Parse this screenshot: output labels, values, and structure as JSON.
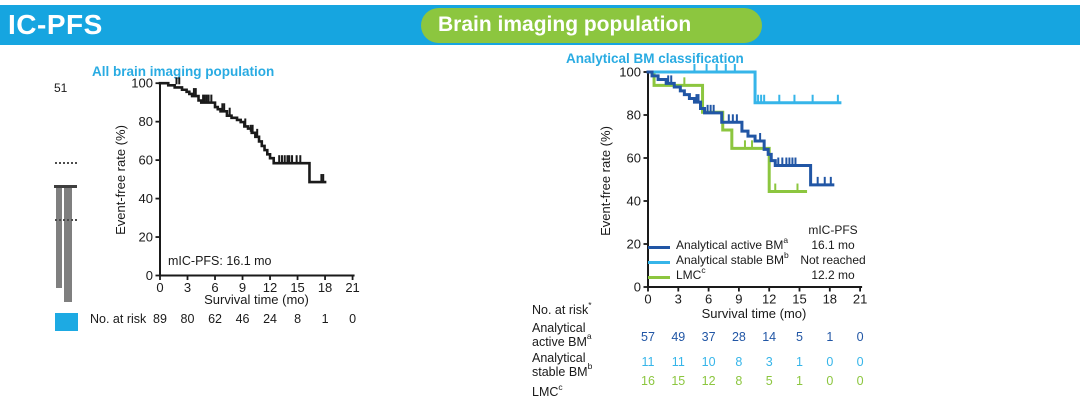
{
  "header": {
    "title": "IC-PFS",
    "banner_color": "#16a5e0",
    "pill": {
      "label": "Brain imaging population",
      "color": "#8cc63f"
    }
  },
  "left_fragment": {
    "count": "51",
    "swatch_color": "#1daae3"
  },
  "chart_data": [
    {
      "type": "line",
      "subtype": "kaplan-meier",
      "title": "All brain imaging population",
      "xlabel": "Survival time (mo)",
      "ylabel": "Event-free rate (%)",
      "xlim": [
        0,
        21
      ],
      "ylim": [
        0,
        100
      ],
      "xticks": [
        0,
        3,
        6,
        9,
        12,
        15,
        18,
        21
      ],
      "yticks": [
        0,
        20,
        40,
        60,
        80,
        100
      ],
      "grid": false,
      "annotation": "mIC-PFS: 16.1 mo",
      "at_risk_label": "No. at risk",
      "series": [
        {
          "name": "All brain imaging population",
          "color": "#1a1a1a",
          "median_months": 16.1,
          "steps": [
            [
              0,
              100
            ],
            [
              0.9,
              98.9
            ],
            [
              1.6,
              97.8
            ],
            [
              2.4,
              96.6
            ],
            [
              2.9,
              95.5
            ],
            [
              3.2,
              94.4
            ],
            [
              3.5,
              93.3
            ],
            [
              4.2,
              91.0
            ],
            [
              4.5,
              89.9
            ],
            [
              6.0,
              87.6
            ],
            [
              6.3,
              86.5
            ],
            [
              6.6,
              85.4
            ],
            [
              7.3,
              83.1
            ],
            [
              7.8,
              82.0
            ],
            [
              8.4,
              80.9
            ],
            [
              8.8,
              79.8
            ],
            [
              9.2,
              77.5
            ],
            [
              9.6,
              76.4
            ],
            [
              10.0,
              74.2
            ],
            [
              10.4,
              72.1
            ],
            [
              10.8,
              69.7
            ],
            [
              11.1,
              67.4
            ],
            [
              11.4,
              65.2
            ],
            [
              11.7,
              63.0
            ],
            [
              12.0,
              61.0
            ],
            [
              12.4,
              58.4
            ],
            [
              16.3,
              48.6
            ],
            [
              18.0,
              48.6
            ]
          ],
          "censors": [
            [
              1.8,
              98.9
            ],
            [
              2.1,
              98.9
            ],
            [
              3.7,
              93.3
            ],
            [
              3.9,
              93.3
            ],
            [
              4.7,
              89.9
            ],
            [
              4.9,
              89.9
            ],
            [
              5.1,
              89.9
            ],
            [
              5.3,
              89.9
            ],
            [
              5.6,
              89.9
            ],
            [
              6.8,
              85.4
            ],
            [
              7.0,
              85.4
            ],
            [
              7.6,
              83.1
            ],
            [
              9.3,
              77.5
            ],
            [
              9.9,
              74.2
            ],
            [
              10.1,
              74.2
            ],
            [
              10.6,
              72.1
            ],
            [
              13.0,
              58.4
            ],
            [
              13.3,
              58.4
            ],
            [
              13.6,
              58.4
            ],
            [
              13.9,
              58.4
            ],
            [
              14.1,
              58.4
            ],
            [
              14.4,
              58.4
            ],
            [
              14.9,
              58.4
            ],
            [
              15.3,
              58.4
            ],
            [
              17.6,
              48.6
            ],
            [
              17.8,
              48.6
            ]
          ],
          "at_risk": [
            89,
            80,
            62,
            46,
            24,
            8,
            1,
            0
          ]
        }
      ]
    },
    {
      "type": "line",
      "subtype": "kaplan-meier",
      "title": "Analytical BM classification",
      "xlabel": "Survival time (mo)",
      "ylabel": "Event-free rate (%)",
      "xlim": [
        0,
        21
      ],
      "ylim": [
        0,
        100
      ],
      "xticks": [
        0,
        3,
        6,
        9,
        12,
        15,
        18,
        21
      ],
      "yticks": [
        0,
        20,
        40,
        60,
        80,
        100
      ],
      "grid": false,
      "at_risk_labels": {
        "title": "No. at risk",
        "title_sup": "*",
        "rows": [
          {
            "label": "Analytical active BM",
            "sup": "a"
          },
          {
            "label": "Analytical stable BM",
            "sup": "b"
          },
          {
            "label": "LMC",
            "sup": "c"
          }
        ]
      },
      "legend": {
        "header": "mIC-PFS",
        "entries": [
          {
            "label": "Analytical active BM",
            "sup": "a",
            "value": "16.1 mo",
            "color": "#2156a5"
          },
          {
            "label": "Analytical stable BM",
            "sup": "b",
            "value": "Not reached",
            "color": "#36b5e9"
          },
          {
            "label": "LMC",
            "sup": "c",
            "value": "12.2 mo",
            "color": "#8cc63f"
          }
        ]
      },
      "series": [
        {
          "name": "Analytical active BM",
          "color": "#2156a5",
          "median_months": 16.1,
          "steps": [
            [
              0,
              100
            ],
            [
              0.4,
              98.2
            ],
            [
              1.0,
              96.5
            ],
            [
              1.8,
              94.7
            ],
            [
              2.6,
              93.0
            ],
            [
              3.2,
              91.2
            ],
            [
              3.6,
              89.5
            ],
            [
              4.1,
              87.7
            ],
            [
              4.6,
              86.0
            ],
            [
              5.2,
              83.0
            ],
            [
              5.6,
              81.0
            ],
            [
              7.3,
              76.6
            ],
            [
              9.3,
              72.5
            ],
            [
              9.9,
              70.2
            ],
            [
              10.6,
              67.9
            ],
            [
              11.5,
              64.0
            ],
            [
              11.9,
              61.7
            ],
            [
              12.2,
              58.8
            ],
            [
              12.6,
              56.5
            ],
            [
              16.1,
              47.5
            ],
            [
              18.3,
              47.5
            ]
          ],
          "censors": [
            [
              2.0,
              94.7
            ],
            [
              2.3,
              94.7
            ],
            [
              4.8,
              86.0
            ],
            [
              5.0,
              86.0
            ],
            [
              5.9,
              81.0
            ],
            [
              6.2,
              81.0
            ],
            [
              6.5,
              81.0
            ],
            [
              8.0,
              76.6
            ],
            [
              8.4,
              76.6
            ],
            [
              8.8,
              76.6
            ],
            [
              11.1,
              67.9
            ],
            [
              12.9,
              56.5
            ],
            [
              13.3,
              56.5
            ],
            [
              13.7,
              56.5
            ],
            [
              14.0,
              56.5
            ],
            [
              14.3,
              56.5
            ],
            [
              14.6,
              56.5
            ],
            [
              16.8,
              47.5
            ],
            [
              17.5,
              47.5
            ],
            [
              18.1,
              47.5
            ]
          ],
          "at_risk": [
            57,
            49,
            37,
            28,
            14,
            5,
            1,
            0
          ]
        },
        {
          "name": "Analytical stable BM",
          "color": "#36b5e9",
          "median_months": null,
          "median_label": "Not reached",
          "steps": [
            [
              0,
              100
            ],
            [
              10.6,
              85.7
            ],
            [
              19.0,
              85.7
            ]
          ],
          "censors": [
            [
              4.6,
              100
            ],
            [
              5.8,
              100
            ],
            [
              6.8,
              100
            ],
            [
              7.7,
              100
            ],
            [
              8.6,
              100
            ],
            [
              10.9,
              85.7
            ],
            [
              11.2,
              85.7
            ],
            [
              11.5,
              85.7
            ],
            [
              13.0,
              85.7
            ],
            [
              14.5,
              85.7
            ],
            [
              16.3,
              85.7
            ],
            [
              18.8,
              85.7
            ]
          ],
          "at_risk": [
            11,
            11,
            10,
            8,
            3,
            1,
            0,
            0
          ]
        },
        {
          "name": "LMC",
          "color": "#8cc63f",
          "median_months": 12.2,
          "steps": [
            [
              0,
              100
            ],
            [
              0.6,
              93.8
            ],
            [
              5.4,
              81.3
            ],
            [
              7.4,
              73.0
            ],
            [
              8.3,
              64.5
            ],
            [
              12.0,
              44.4
            ],
            [
              15.6,
              44.4
            ]
          ],
          "censors": [
            [
              3.6,
              93.8
            ],
            [
              9.6,
              64.5
            ],
            [
              10.3,
              64.5
            ],
            [
              12.6,
              44.4
            ],
            [
              14.8,
              44.4
            ]
          ],
          "at_risk": [
            16,
            15,
            12,
            8,
            5,
            1,
            0,
            0
          ]
        }
      ]
    }
  ]
}
